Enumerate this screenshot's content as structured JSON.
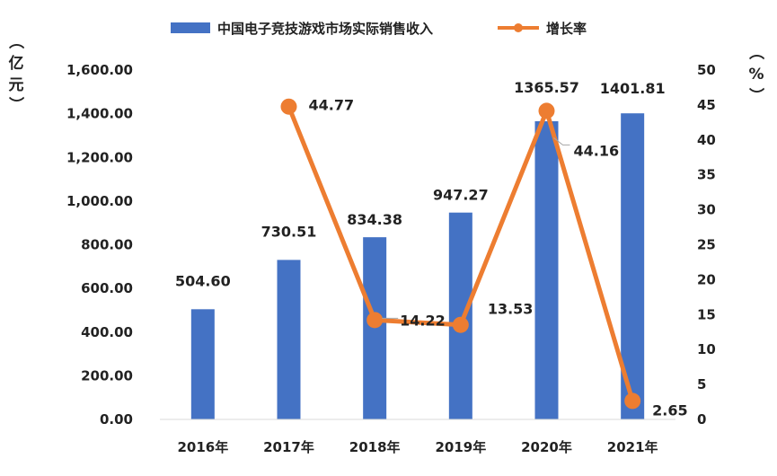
{
  "chart_data": {
    "type": "bar+line",
    "title": "",
    "categories": [
      "2016年",
      "2017年",
      "2018年",
      "2019年",
      "2020年",
      "2021年"
    ],
    "series": [
      {
        "name": "中国电子竞技游戏市场实际销售收入",
        "type": "bar",
        "axis": "left",
        "color": "#4472C4",
        "values": [
          504.6,
          730.51,
          834.38,
          947.27,
          1365.57,
          1401.81
        ],
        "labels": [
          "504.60",
          "730.51",
          "834.38",
          "947.27",
          "1365.57",
          "1401.81"
        ]
      },
      {
        "name": "增长率",
        "type": "line",
        "axis": "right",
        "color": "#ED7D31",
        "values": [
          null,
          44.77,
          14.22,
          13.53,
          44.16,
          2.65
        ],
        "labels": [
          "",
          "44.77",
          "14.22",
          "13.53",
          "44.16",
          "2.65"
        ]
      }
    ],
    "y_left": {
      "label": "（亿元）",
      "label_chars": [
        "（",
        "亿",
        "元",
        "）"
      ],
      "range": [
        0,
        1600
      ],
      "ticks": [
        "0.00",
        "200.00",
        "400.00",
        "600.00",
        "800.00",
        "1,000.00",
        "1,200.00",
        "1,400.00",
        "1,600.00"
      ]
    },
    "y_right": {
      "label": "（%）",
      "label_chars": [
        "（",
        "%",
        "）"
      ],
      "range": [
        0,
        50
      ],
      "ticks": [
        "0",
        "5",
        "10",
        "15",
        "20",
        "25",
        "30",
        "35",
        "40",
        "45",
        "50"
      ]
    },
    "grid": false,
    "legend_position": "top-center"
  }
}
